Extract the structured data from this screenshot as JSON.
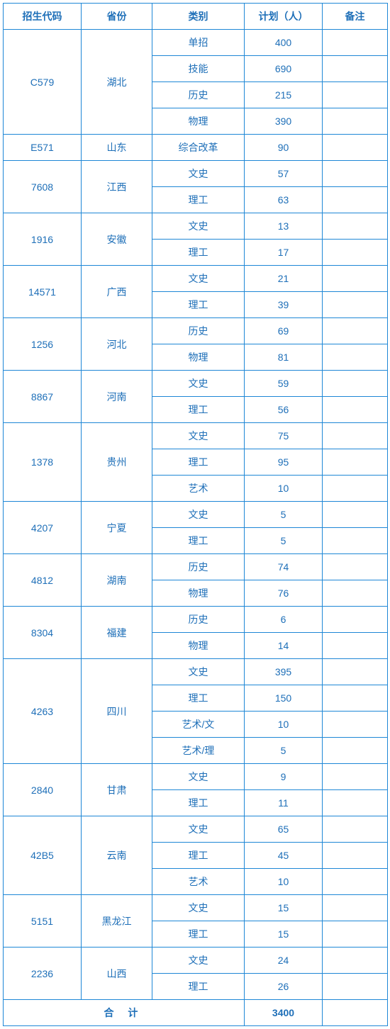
{
  "headers": {
    "code": "招生代码",
    "province": "省份",
    "category": "类别",
    "plan": "计划（人）",
    "note": "备注"
  },
  "rows": [
    {
      "code": "C579",
      "province": "湖北",
      "categories": [
        {
          "cat": "单招",
          "plan": "400",
          "note": ""
        },
        {
          "cat": "技能",
          "plan": "690",
          "note": ""
        },
        {
          "cat": "历史",
          "plan": "215",
          "note": ""
        },
        {
          "cat": "物理",
          "plan": "390",
          "note": ""
        }
      ]
    },
    {
      "code": "E571",
      "province": "山东",
      "categories": [
        {
          "cat": "综合改革",
          "plan": "90",
          "note": ""
        }
      ]
    },
    {
      "code": "7608",
      "province": "江西",
      "categories": [
        {
          "cat": "文史",
          "plan": "57",
          "note": ""
        },
        {
          "cat": "理工",
          "plan": "63",
          "note": ""
        }
      ]
    },
    {
      "code": "1916",
      "province": "安徽",
      "categories": [
        {
          "cat": "文史",
          "plan": "13",
          "note": ""
        },
        {
          "cat": "理工",
          "plan": "17",
          "note": ""
        }
      ]
    },
    {
      "code": "14571",
      "province": "广西",
      "categories": [
        {
          "cat": "文史",
          "plan": "21",
          "note": ""
        },
        {
          "cat": "理工",
          "plan": "39",
          "note": ""
        }
      ]
    },
    {
      "code": "1256",
      "province": "河北",
      "categories": [
        {
          "cat": "历史",
          "plan": "69",
          "note": ""
        },
        {
          "cat": "物理",
          "plan": "81",
          "note": ""
        }
      ]
    },
    {
      "code": "8867",
      "province": "河南",
      "categories": [
        {
          "cat": "文史",
          "plan": "59",
          "note": ""
        },
        {
          "cat": "理工",
          "plan": "56",
          "note": ""
        }
      ]
    },
    {
      "code": "1378",
      "province": "贵州",
      "categories": [
        {
          "cat": "文史",
          "plan": "75",
          "note": ""
        },
        {
          "cat": "理工",
          "plan": "95",
          "note": ""
        },
        {
          "cat": "艺术",
          "plan": "10",
          "note": ""
        }
      ]
    },
    {
      "code": "4207",
      "province": "宁夏",
      "categories": [
        {
          "cat": "文史",
          "plan": "5",
          "note": ""
        },
        {
          "cat": "理工",
          "plan": "5",
          "note": ""
        }
      ]
    },
    {
      "code": "4812",
      "province": "湖南",
      "categories": [
        {
          "cat": "历史",
          "plan": "74",
          "note": ""
        },
        {
          "cat": "物理",
          "plan": "76",
          "note": ""
        }
      ]
    },
    {
      "code": "8304",
      "province": "福建",
      "categories": [
        {
          "cat": "历史",
          "plan": "6",
          "note": ""
        },
        {
          "cat": "物理",
          "plan": "14",
          "note": ""
        }
      ]
    },
    {
      "code": "4263",
      "province": "四川",
      "categories": [
        {
          "cat": "文史",
          "plan": "395",
          "note": ""
        },
        {
          "cat": "理工",
          "plan": "150",
          "note": ""
        },
        {
          "cat": "艺术/文",
          "plan": "10",
          "note": ""
        },
        {
          "cat": "艺术/理",
          "plan": "5",
          "note": ""
        }
      ]
    },
    {
      "code": "2840",
      "province": "甘肃",
      "categories": [
        {
          "cat": "文史",
          "plan": "9",
          "note": ""
        },
        {
          "cat": "理工",
          "plan": "11",
          "note": ""
        }
      ]
    },
    {
      "code": "42B5",
      "province": "云南",
      "categories": [
        {
          "cat": "文史",
          "plan": "65",
          "note": ""
        },
        {
          "cat": "理工",
          "plan": "45",
          "note": ""
        },
        {
          "cat": "艺术",
          "plan": "10",
          "note": ""
        }
      ]
    },
    {
      "code": "5151",
      "province": "黑龙江",
      "categories": [
        {
          "cat": "文史",
          "plan": "15",
          "note": ""
        },
        {
          "cat": "理工",
          "plan": "15",
          "note": ""
        }
      ]
    },
    {
      "code": "2236",
      "province": "山西",
      "categories": [
        {
          "cat": "文史",
          "plan": "24",
          "note": ""
        },
        {
          "cat": "理工",
          "plan": "26",
          "note": ""
        }
      ]
    }
  ],
  "total": {
    "label": "合  计",
    "value": "3400"
  },
  "colors": {
    "border": "#1e87d6",
    "text": "#1e6fb8",
    "background": "#ffffff"
  }
}
